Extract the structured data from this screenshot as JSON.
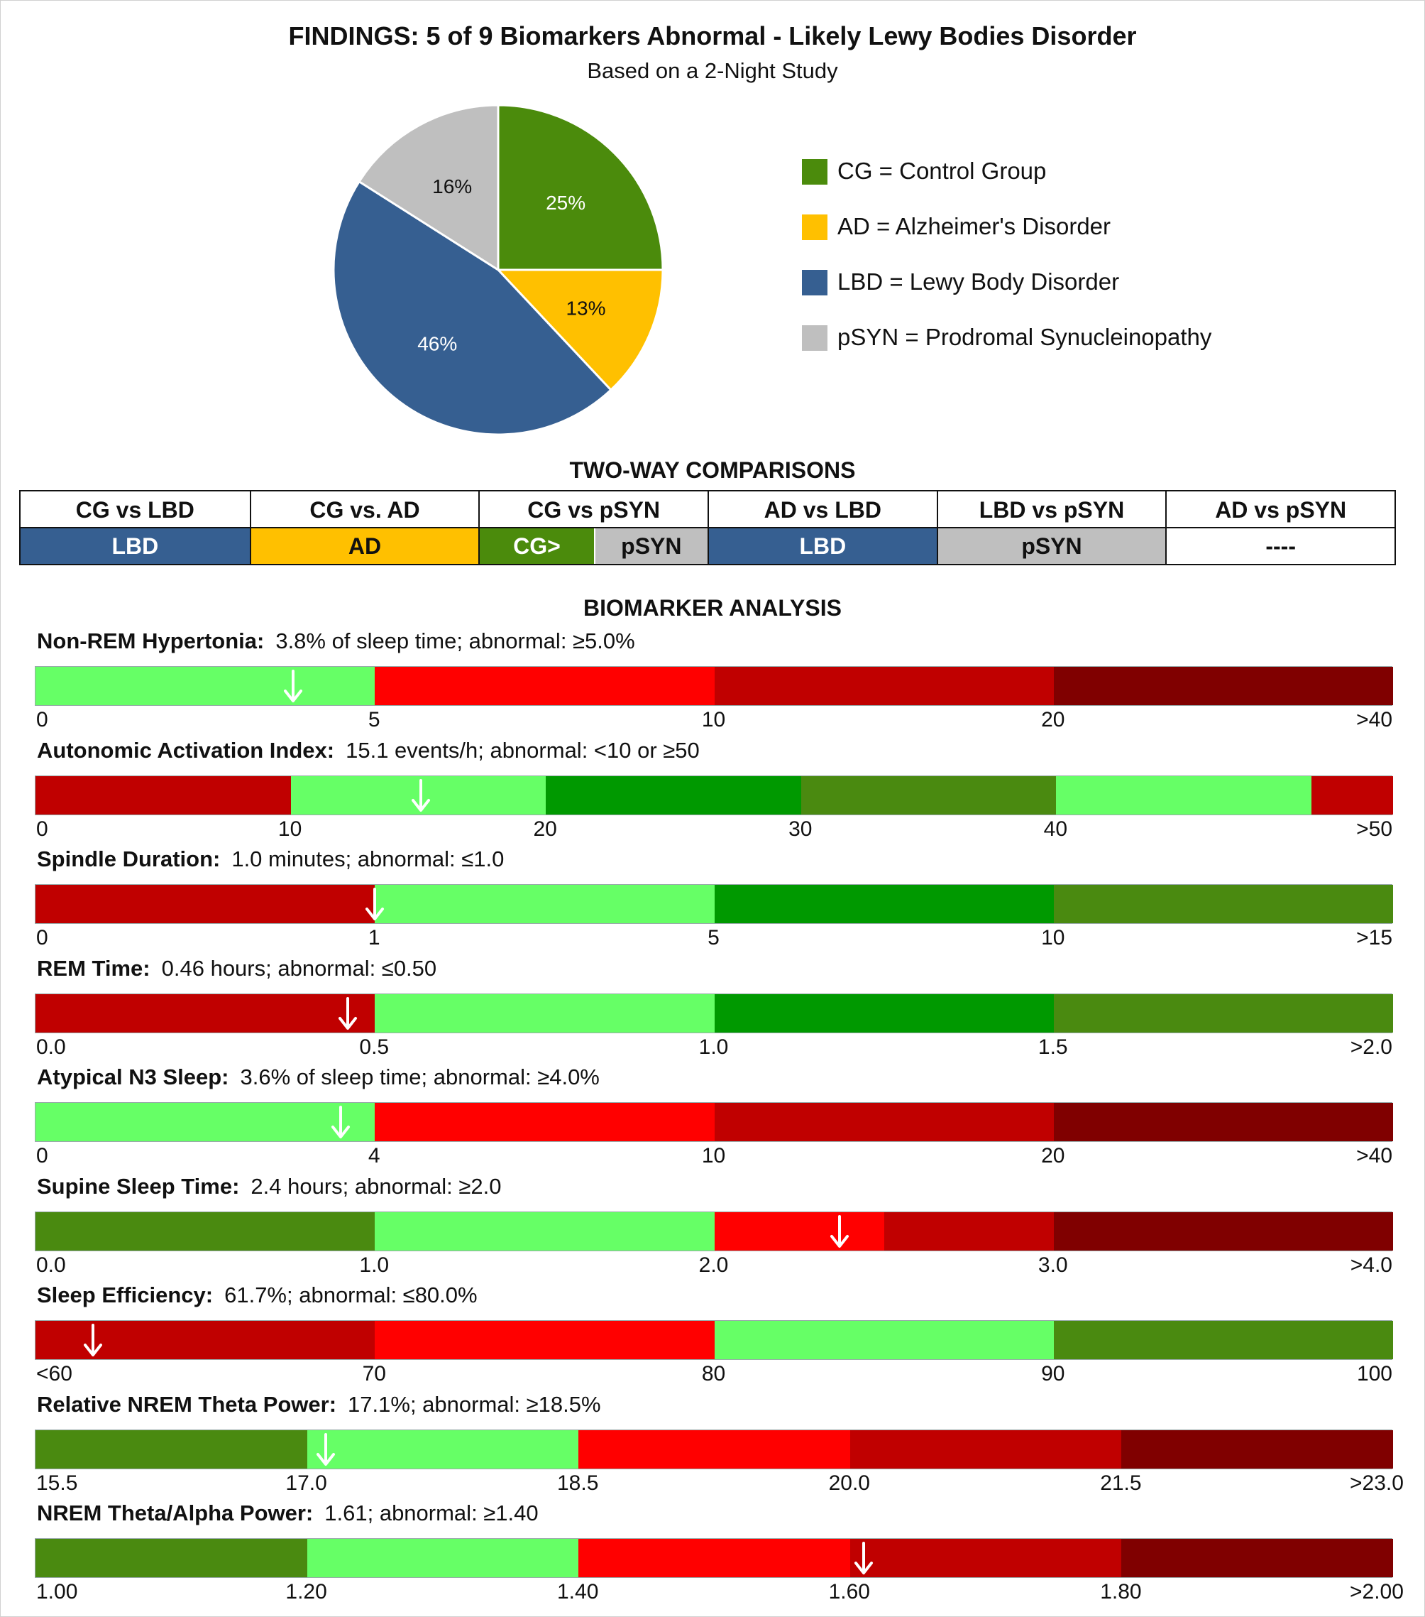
{
  "title": "FINDINGS: 5 of 9 Biomarkers Abnormal - Likely Lewy Bodies Disorder",
  "subtitle": "Based on a 2-Night Study",
  "colors": {
    "cg": "#4b8b0c",
    "ad": "#ffc000",
    "lbd": "#365f91",
    "psyn": "#bfbfbf",
    "normal_light": "#66ff66",
    "normal_mid": "#009900",
    "normal_dark": "#4a8a10",
    "abnormal_light": "#ff0000",
    "abnormal_mid": "#c00000",
    "abnormal_dark": "#800000"
  },
  "chart_data": [
    {
      "type": "pie",
      "slices": [
        {
          "key": "cg",
          "label": "25%",
          "value": 25,
          "color": "#4b8b0c",
          "text_color": "#ffffff"
        },
        {
          "key": "ad",
          "label": "13%",
          "value": 13,
          "color": "#ffc000",
          "text_color": "#111111"
        },
        {
          "key": "lbd",
          "label": "46%",
          "value": 46,
          "color": "#365f91",
          "text_color": "#ffffff"
        },
        {
          "key": "psyn",
          "label": "16%",
          "value": 16,
          "color": "#bfbfbf",
          "text_color": "#111111"
        }
      ],
      "legend_position": "right",
      "legend": [
        {
          "key": "cg",
          "label": "CG = Control Group",
          "color": "#4b8b0c"
        },
        {
          "key": "ad",
          "label": "AD = Alzheimer's Disorder",
          "color": "#ffc000"
        },
        {
          "key": "lbd",
          "label": "LBD = Lewy Body Disorder",
          "color": "#365f91"
        },
        {
          "key": "psyn",
          "label": "pSYN = Prodromal Synucleinopathy",
          "color": "#bfbfbf"
        }
      ]
    }
  ],
  "comparisons": {
    "title": "TWO-WAY COMPARISONS",
    "columns": [
      {
        "header": "CG vs LBD",
        "results": [
          {
            "label": "LBD",
            "color": "#365f91",
            "text_color": "#ffffff"
          }
        ]
      },
      {
        "header": "CG vs. AD",
        "results": [
          {
            "label": "AD",
            "color": "#ffc000",
            "text_color": "#111111"
          }
        ]
      },
      {
        "header": "CG vs pSYN",
        "results": [
          {
            "label": "CG>",
            "color": "#4b8b0c",
            "text_color": "#ffffff"
          },
          {
            "label": "pSYN",
            "color": "#bfbfbf",
            "text_color": "#111111"
          }
        ]
      },
      {
        "header": "AD vs LBD",
        "results": [
          {
            "label": "LBD",
            "color": "#365f91",
            "text_color": "#ffffff"
          }
        ]
      },
      {
        "header": "LBD vs pSYN",
        "results": [
          {
            "label": "pSYN",
            "color": "#bfbfbf",
            "text_color": "#111111"
          }
        ]
      },
      {
        "header": "AD vs pSYN",
        "results": [
          {
            "label": "----",
            "color": "#ffffff",
            "text_color": "#111111"
          }
        ]
      }
    ]
  },
  "biomarkers": {
    "title": "BIOMARKER ANALYSIS",
    "items": [
      {
        "name": "Non-REM Hypertonia:",
        "detail": "3.8% of sleep time; abnormal:  ≥5.0%",
        "ticks": [
          "0",
          "5",
          "10",
          "20",
          ">40"
        ],
        "segments": [
          {
            "from": 0,
            "to": 1,
            "color": "#66ff66"
          },
          {
            "from": 1,
            "to": 2,
            "color": "#ff0000"
          },
          {
            "from": 2,
            "to": 3,
            "color": "#c00000"
          },
          {
            "from": 3,
            "to": 4,
            "color": "#800000"
          }
        ],
        "value": 3.8,
        "value_position": 0.76,
        "tick_layout": "nrem"
      },
      {
        "name": "Autonomic Activation Index:",
        "detail": "15.1 events/h; abnormal:  <10  or  ≥50",
        "ticks": [
          "0",
          "10",
          "20",
          "30",
          "40",
          ">50"
        ],
        "segments": [
          {
            "from": 0,
            "to": 1,
            "color": "#c00000"
          },
          {
            "from": 1,
            "to": 2,
            "color": "#66ff66"
          },
          {
            "from": 2,
            "to": 3,
            "color": "#009900"
          },
          {
            "from": 3,
            "to": 4,
            "color": "#4a8a10"
          },
          {
            "from": 4,
            "to": 5,
            "color": "#66ff66"
          },
          {
            "from": 5,
            "to": 5.32,
            "color": "#c00000"
          }
        ],
        "value": 15.1,
        "value_position": 1.51,
        "tick_layout": "aai"
      },
      {
        "name": "Spindle Duration:",
        "detail": "1.0 minutes; abnormal:  ≤1.0",
        "ticks": [
          "0",
          "1",
          "5",
          "10",
          ">15"
        ],
        "segments": [
          {
            "from": 0,
            "to": 1,
            "color": "#c00000"
          },
          {
            "from": 1,
            "to": 2,
            "color": "#66ff66"
          },
          {
            "from": 2,
            "to": 3,
            "color": "#009900"
          },
          {
            "from": 3,
            "to": 4,
            "color": "#4a8a10"
          }
        ],
        "value": 1.0,
        "value_position": 1.0,
        "tick_layout": "spindle"
      },
      {
        "name": "REM Time:",
        "detail": "0.46 hours; abnormal:  ≤0.50",
        "ticks": [
          "0.0",
          "0.5",
          "1.0",
          "1.5",
          ">2.0"
        ],
        "segments": [
          {
            "from": 0,
            "to": 1,
            "color": "#c00000"
          },
          {
            "from": 1,
            "to": 2,
            "color": "#66ff66"
          },
          {
            "from": 2,
            "to": 3,
            "color": "#009900"
          },
          {
            "from": 3,
            "to": 4,
            "color": "#4a8a10"
          }
        ],
        "value": 0.46,
        "value_position": 0.92,
        "tick_layout": "even"
      },
      {
        "name": "Atypical N3 Sleep:",
        "detail": "3.6% of sleep time; abnormal:  ≥4.0%",
        "ticks": [
          "0",
          "4",
          "10",
          "20",
          ">40"
        ],
        "segments": [
          {
            "from": 0,
            "to": 1,
            "color": "#66ff66"
          },
          {
            "from": 1,
            "to": 2,
            "color": "#ff0000"
          },
          {
            "from": 2,
            "to": 3,
            "color": "#c00000"
          },
          {
            "from": 3,
            "to": 4,
            "color": "#800000"
          }
        ],
        "value": 3.6,
        "value_position": 0.9,
        "tick_layout": "n3"
      },
      {
        "name": "Supine Sleep Time:",
        "detail": "2.4 hours; abnormal:  ≥2.0",
        "ticks": [
          "0.0",
          "1.0",
          "2.0",
          "3.0",
          ">4.0"
        ],
        "segments": [
          {
            "from": 0,
            "to": 1,
            "color": "#4a8a10"
          },
          {
            "from": 1,
            "to": 2,
            "color": "#66ff66"
          },
          {
            "from": 2,
            "to": 2.5,
            "color": "#ff0000"
          },
          {
            "from": 2.5,
            "to": 3,
            "color": "#c00000"
          },
          {
            "from": 3,
            "to": 4,
            "color": "#800000"
          }
        ],
        "value": 2.4,
        "value_position": 2.37,
        "tick_layout": "even"
      },
      {
        "name": "Sleep Efficiency:",
        "detail": "61.7%; abnormal:  ≤80.0%",
        "ticks": [
          "<60",
          "70",
          "80",
          "90",
          "100"
        ],
        "segments": [
          {
            "from": 0,
            "to": 1,
            "color": "#c00000"
          },
          {
            "from": 1,
            "to": 2,
            "color": "#ff0000"
          },
          {
            "from": 2,
            "to": 3,
            "color": "#66ff66"
          },
          {
            "from": 3,
            "to": 4,
            "color": "#4a8a10"
          }
        ],
        "value": 61.7,
        "value_position": 0.17,
        "tick_layout": "even"
      },
      {
        "name": "Relative NREM Theta Power:",
        "detail": "17.1%; abnormal:  ≥18.5%",
        "ticks": [
          "15.5",
          "17.0",
          "18.5",
          "20.0",
          "21.5",
          ">23.0"
        ],
        "segments": [
          {
            "from": 0,
            "to": 1,
            "color": "#4a8a10"
          },
          {
            "from": 1,
            "to": 2,
            "color": "#66ff66"
          },
          {
            "from": 2,
            "to": 3,
            "color": "#ff0000"
          },
          {
            "from": 3,
            "to": 4,
            "color": "#c00000"
          },
          {
            "from": 4,
            "to": 5,
            "color": "#800000"
          }
        ],
        "value": 17.1,
        "value_position": 1.07,
        "tick_layout": "even"
      },
      {
        "name": "NREM Theta/Alpha Power:",
        "detail": "1.61; abnormal:  ≥1.40",
        "ticks": [
          "1.00",
          "1.20",
          "1.40",
          "1.60",
          "1.80",
          ">2.00"
        ],
        "segments": [
          {
            "from": 0,
            "to": 1,
            "color": "#4a8a10"
          },
          {
            "from": 1,
            "to": 2,
            "color": "#66ff66"
          },
          {
            "from": 2,
            "to": 3,
            "color": "#ff0000"
          },
          {
            "from": 3,
            "to": 4,
            "color": "#c00000"
          },
          {
            "from": 4,
            "to": 5,
            "color": "#800000"
          }
        ],
        "value": 1.61,
        "value_position": 3.05,
        "tick_layout": "even"
      }
    ]
  }
}
